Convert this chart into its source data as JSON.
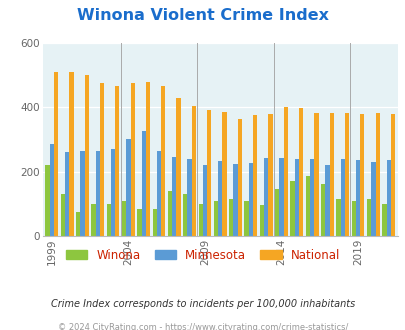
{
  "title": "Winona Violent Crime Index",
  "title_color": "#1a6dcc",
  "subtitle": "Crime Index corresponds to incidents per 100,000 inhabitants",
  "footer": "© 2024 CityRating.com - https://www.cityrating.com/crime-statistics/",
  "years": [
    1999,
    2000,
    2001,
    2002,
    2003,
    2004,
    2005,
    2006,
    2007,
    2008,
    2009,
    2010,
    2011,
    2012,
    2013,
    2014,
    2015,
    2016,
    2017,
    2018,
    2019,
    2020,
    2021
  ],
  "winona": [
    220,
    130,
    75,
    100,
    100,
    110,
    85,
    85,
    140,
    130,
    100,
    110,
    115,
    110,
    95,
    145,
    170,
    185,
    160,
    115,
    110,
    115,
    100
  ],
  "minnesota": [
    285,
    260,
    265,
    265,
    270,
    300,
    325,
    265,
    245,
    238,
    220,
    233,
    225,
    228,
    243,
    243,
    240,
    240,
    220,
    238,
    235,
    230,
    235
  ],
  "national": [
    510,
    510,
    500,
    475,
    465,
    475,
    480,
    465,
    430,
    405,
    390,
    385,
    365,
    375,
    380,
    400,
    398,
    383,
    383,
    383,
    380,
    383,
    380
  ],
  "winona_color": "#8dc63f",
  "minnesota_color": "#5b9bd5",
  "national_color": "#f5a623",
  "plot_bg_color": "#e6f2f5",
  "ylim": [
    0,
    600
  ],
  "yticks": [
    0,
    200,
    400,
    600
  ],
  "legend_labels": [
    "Winona",
    "Minnesota",
    "National"
  ],
  "tick_years": [
    1999,
    2004,
    2009,
    2014,
    2019
  ]
}
